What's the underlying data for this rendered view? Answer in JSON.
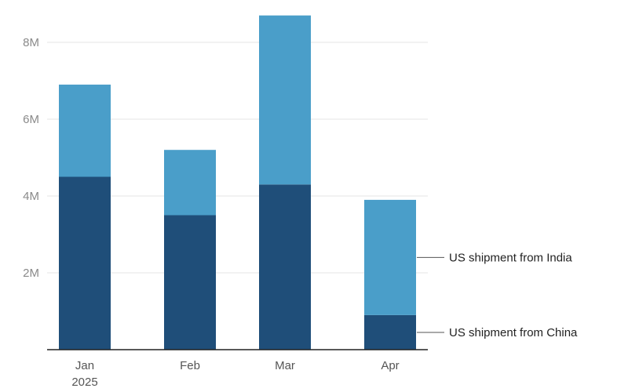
{
  "chart_data": {
    "type": "bar",
    "stacked": true,
    "title": "",
    "xlabel": "",
    "ylabel": "",
    "categories": [
      "Jan",
      "Feb",
      "Mar",
      "Apr"
    ],
    "category_sublabels": [
      "2025",
      "",
      "",
      ""
    ],
    "series": [
      {
        "name": "US shipment from China",
        "values": [
          4.5,
          3.5,
          4.3,
          0.9
        ],
        "color": "#1f4e79"
      },
      {
        "name": "US shipment from India",
        "values": [
          2.4,
          1.7,
          4.4,
          3.0
        ],
        "color": "#4a9ec9"
      }
    ],
    "yticks": [
      {
        "value": 2,
        "label": "2M"
      },
      {
        "value": 4,
        "label": "4M"
      },
      {
        "value": 6,
        "label": "6M"
      },
      {
        "value": 8,
        "label": "8M"
      }
    ],
    "ylim": [
      0,
      8.8
    ],
    "grid": true,
    "legend": "right, direct labels"
  }
}
